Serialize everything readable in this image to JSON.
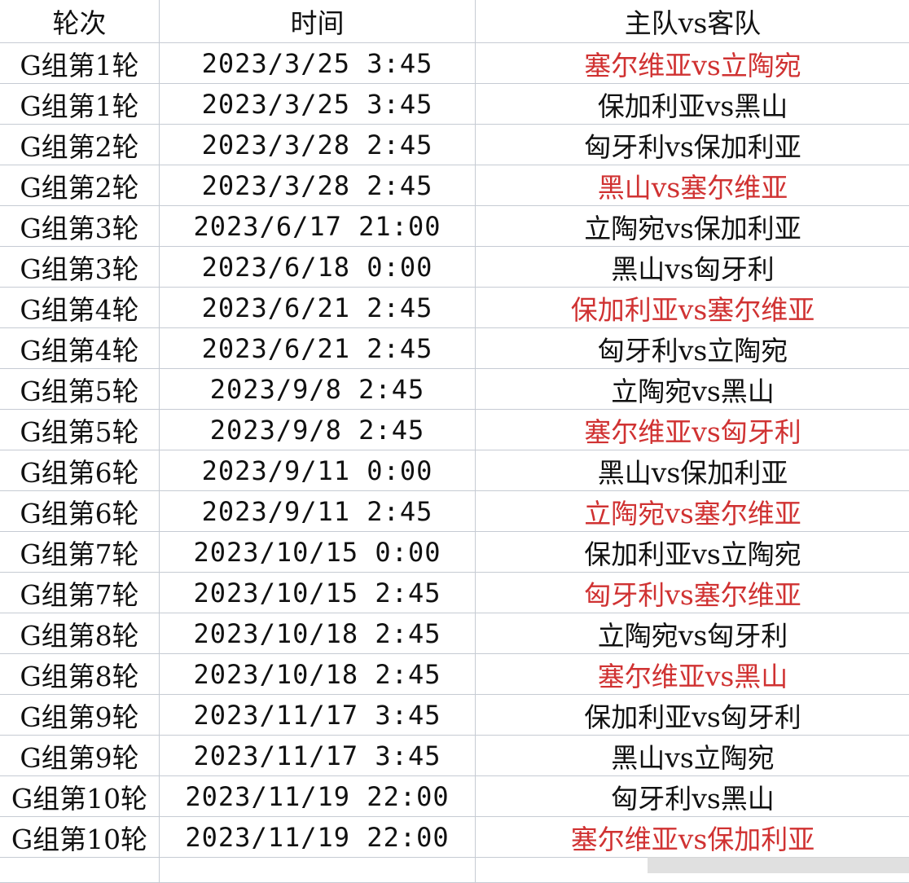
{
  "header": {
    "round": "轮次",
    "time": "时间",
    "match": "主队vs客队"
  },
  "colors": {
    "highlight": "#d03232",
    "text": "#111111",
    "grid": "#c6cbd3"
  },
  "rows": [
    {
      "round": "G组第1轮",
      "time": "2023/3/25 3:45",
      "match": "塞尔维亚vs立陶宛",
      "highlight": true
    },
    {
      "round": "G组第1轮",
      "time": "2023/3/25 3:45",
      "match": "保加利亚vs黑山",
      "highlight": false
    },
    {
      "round": "G组第2轮",
      "time": "2023/3/28 2:45",
      "match": "匈牙利vs保加利亚",
      "highlight": false
    },
    {
      "round": "G组第2轮",
      "time": "2023/3/28 2:45",
      "match": "黑山vs塞尔维亚",
      "highlight": true
    },
    {
      "round": "G组第3轮",
      "time": "2023/6/17 21:00",
      "match": "立陶宛vs保加利亚",
      "highlight": false
    },
    {
      "round": "G组第3轮",
      "time": "2023/6/18 0:00",
      "match": "黑山vs匈牙利",
      "highlight": false
    },
    {
      "round": "G组第4轮",
      "time": "2023/6/21 2:45",
      "match": "保加利亚vs塞尔维亚",
      "highlight": true
    },
    {
      "round": "G组第4轮",
      "time": "2023/6/21 2:45",
      "match": "匈牙利vs立陶宛",
      "highlight": false
    },
    {
      "round": "G组第5轮",
      "time": "2023/9/8 2:45",
      "match": "立陶宛vs黑山",
      "highlight": false
    },
    {
      "round": "G组第5轮",
      "time": "2023/9/8 2:45",
      "match": "塞尔维亚vs匈牙利",
      "highlight": true
    },
    {
      "round": "G组第6轮",
      "time": "2023/9/11 0:00",
      "match": "黑山vs保加利亚",
      "highlight": false
    },
    {
      "round": "G组第6轮",
      "time": "2023/9/11 2:45",
      "match": "立陶宛vs塞尔维亚",
      "highlight": true
    },
    {
      "round": "G组第7轮",
      "time": "2023/10/15 0:00",
      "match": "保加利亚vs立陶宛",
      "highlight": false
    },
    {
      "round": "G组第7轮",
      "time": "2023/10/15 2:45",
      "match": "匈牙利vs塞尔维亚",
      "highlight": true
    },
    {
      "round": "G组第8轮",
      "time": "2023/10/18 2:45",
      "match": "立陶宛vs匈牙利",
      "highlight": false
    },
    {
      "round": "G组第8轮",
      "time": "2023/10/18 2:45",
      "match": "塞尔维亚vs黑山",
      "highlight": true
    },
    {
      "round": "G组第9轮",
      "time": "2023/11/17 3:45",
      "match": "保加利亚vs匈牙利",
      "highlight": false
    },
    {
      "round": "G组第9轮",
      "time": "2023/11/17 3:45",
      "match": "黑山vs立陶宛",
      "highlight": false
    },
    {
      "round": "G组第10轮",
      "time": "2023/11/19 22:00",
      "match": "匈牙利vs黑山",
      "highlight": false
    },
    {
      "round": "G组第10轮",
      "time": "2023/11/19 22:00",
      "match": "塞尔维亚vs保加利亚",
      "highlight": true
    }
  ]
}
